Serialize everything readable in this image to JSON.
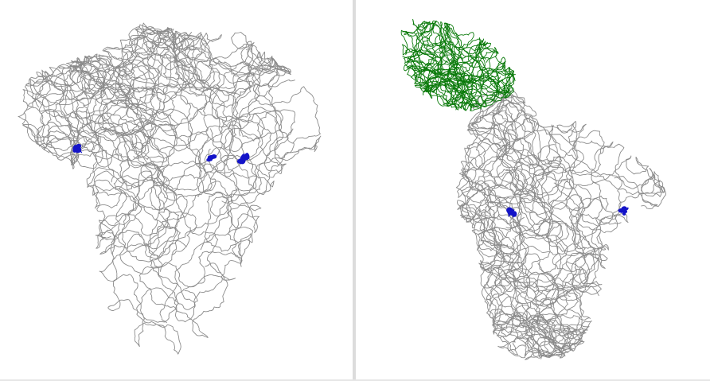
{
  "viewers": [
    {
      "id": "left",
      "background": "#ffffff",
      "chains": [
        {
          "role": "protein-trace",
          "color": "#8a8a8a"
        }
      ],
      "ligands": [
        {
          "role": "ligand-site-1",
          "color": "#1414c8"
        },
        {
          "role": "ligand-site-2",
          "color": "#1414c8"
        },
        {
          "role": "ligand-site-3",
          "color": "#1414c8"
        }
      ]
    },
    {
      "id": "right",
      "background": "#ffffff",
      "chains": [
        {
          "role": "protein-trace",
          "color": "#8a8a8a"
        },
        {
          "role": "bound-domain-trace",
          "color": "#0a7a0a"
        }
      ],
      "ligands": [
        {
          "role": "ligand-site-1",
          "color": "#1414c8"
        },
        {
          "role": "ligand-site-2",
          "color": "#1414c8"
        }
      ]
    }
  ],
  "divider_color": "#dcdcdc"
}
